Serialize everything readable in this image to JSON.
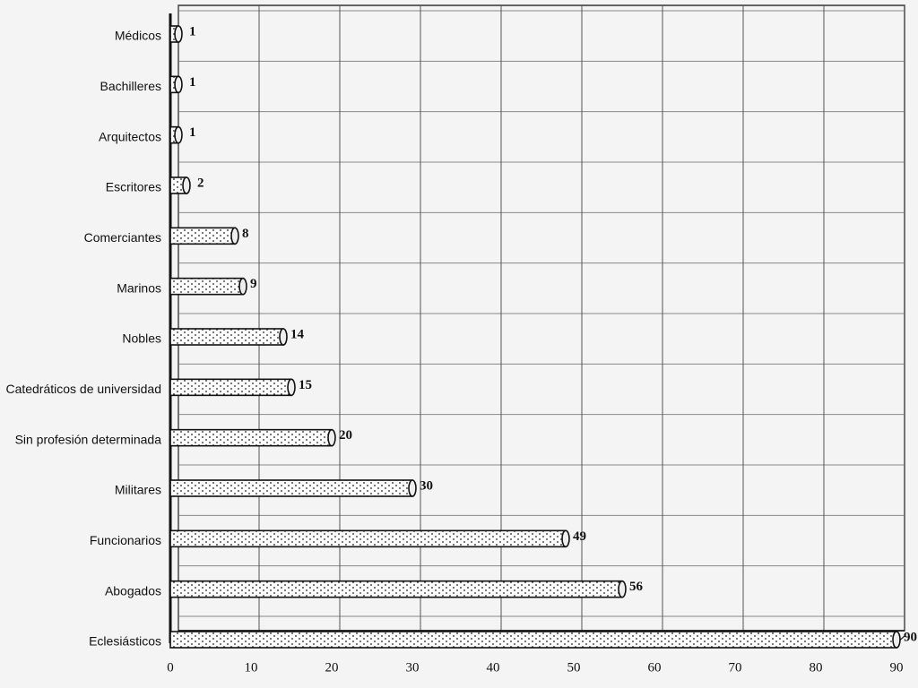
{
  "chart_data": {
    "type": "bar",
    "orientation": "horizontal",
    "categories": [
      "Médicos",
      "Bachilleres",
      "Arquitectos",
      "Escritores",
      "Comerciantes",
      "Marinos",
      "Nobles",
      "Catedráticos de universidad",
      "Sin profesión determinada",
      "Militares",
      "Funcionarios",
      "Abogados",
      "Eclesiásticos"
    ],
    "values": [
      1,
      1,
      1,
      2,
      8,
      9,
      14,
      15,
      20,
      30,
      49,
      56,
      90
    ],
    "xlim": [
      0,
      90
    ],
    "xticks": [
      0,
      10,
      20,
      30,
      40,
      50,
      60,
      70,
      80,
      90
    ],
    "grid": true
  }
}
